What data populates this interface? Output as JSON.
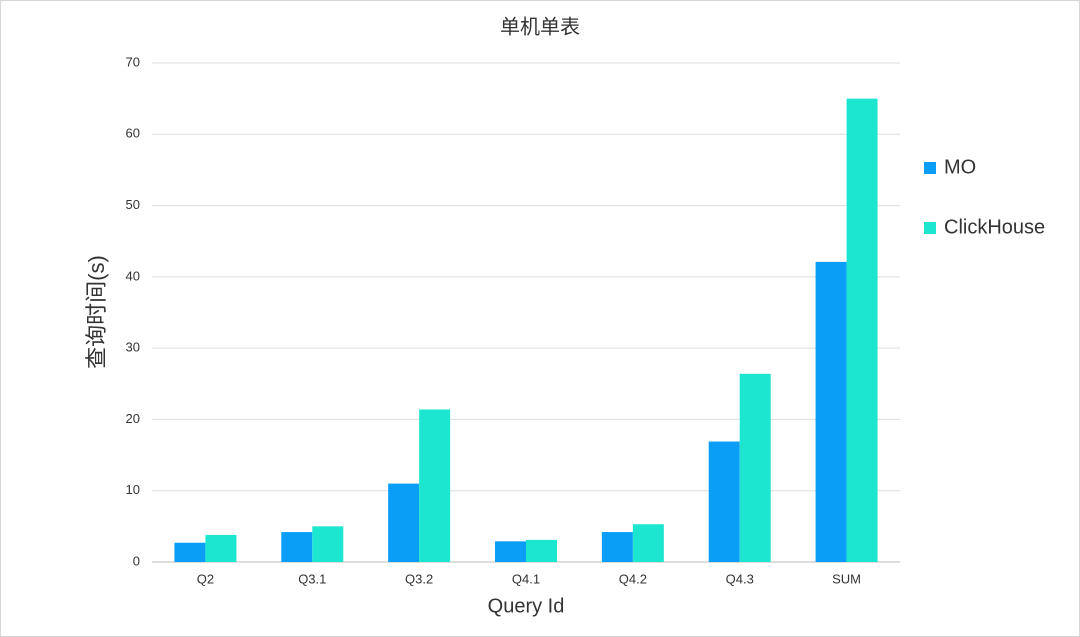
{
  "chart_data": {
    "type": "bar",
    "title": "单机单表",
    "x_label": "Query Id",
    "y_label": "查询时间(s)",
    "categories": [
      "Q2",
      "Q3.1",
      "Q3.2",
      "Q4.1",
      "Q4.2",
      "Q4.3",
      "SUM"
    ],
    "series": [
      {
        "name": "MO",
        "color": "#0a9ef7",
        "values": [
          2.7,
          4.2,
          11,
          2.9,
          4.2,
          16.9,
          42.1
        ]
      },
      {
        "name": "ClickHouse",
        "color": "#1de6d0",
        "values": [
          3.8,
          5.0,
          21.4,
          3.1,
          5.3,
          26.4,
          65.0
        ]
      }
    ],
    "ylim": [
      0,
      70
    ],
    "yticks": [
      0,
      10,
      20,
      30,
      40,
      50,
      60,
      70
    ],
    "grid": true,
    "legend": "right"
  }
}
